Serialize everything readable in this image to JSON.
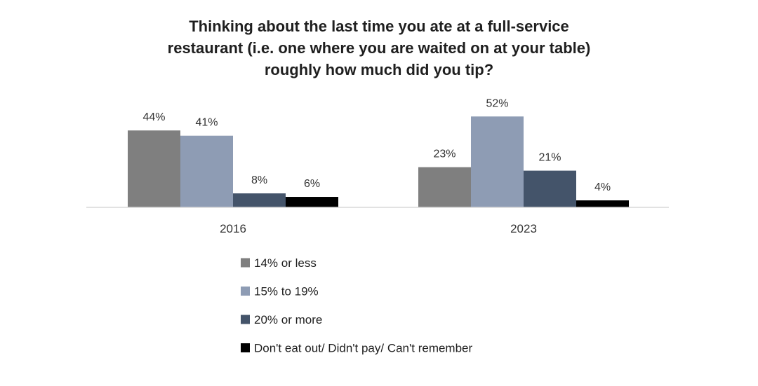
{
  "chart_data": {
    "type": "bar",
    "title": [
      "Thinking about the last time you ate at a full-service",
      "restaurant (i.e. one where you are waited on at your table)",
      "roughly how much did you tip?"
    ],
    "categories": [
      "2016",
      "2023"
    ],
    "series": [
      {
        "name": "14% or less",
        "values": [
          44,
          23
        ],
        "labels": [
          "44%",
          "23%"
        ],
        "color": "#7f7f7f"
      },
      {
        "name": "15% to 19%",
        "values": [
          41,
          52
        ],
        "labels": [
          "41%",
          "52%"
        ],
        "color": "#8e9cb4"
      },
      {
        "name": "20% or more",
        "values": [
          8,
          21
        ],
        "labels": [
          "8%",
          "21%"
        ],
        "color": "#44546a"
      },
      {
        "name": "Don't eat out/ Didn't pay/ Can't remember",
        "values": [
          6,
          4
        ],
        "labels": [
          "6%",
          "4%"
        ],
        "color": "#000000"
      }
    ],
    "ylim": [
      0,
      60
    ],
    "grid": false,
    "legend_position": "bottom",
    "axis_color": "#d9d9d9"
  }
}
